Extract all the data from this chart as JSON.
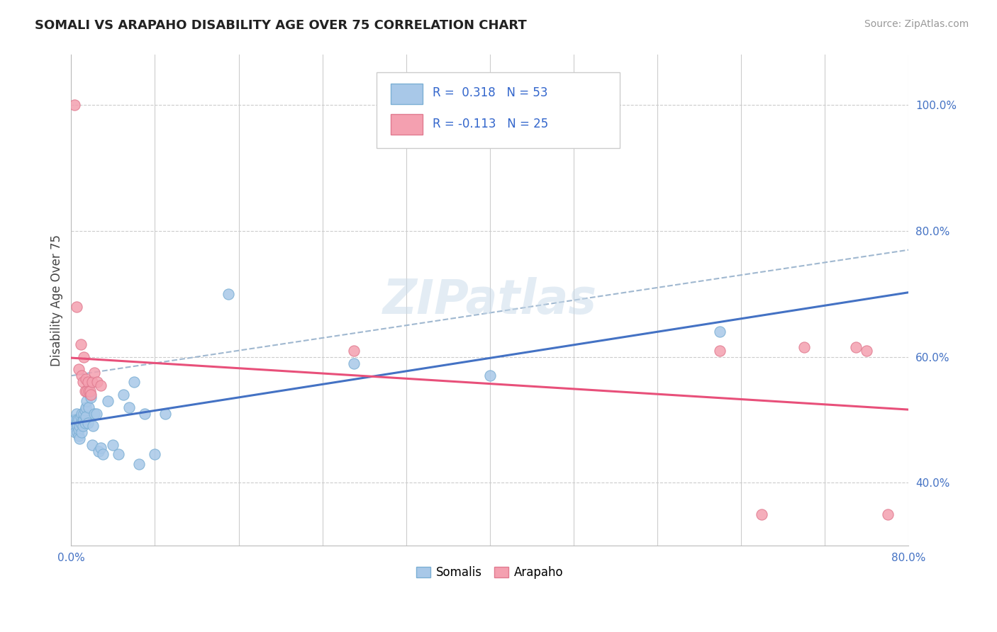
{
  "title": "SOMALI VS ARAPAHO DISABILITY AGE OVER 75 CORRELATION CHART",
  "source": "Source: ZipAtlas.com",
  "ylabel": "Disability Age Over 75",
  "xlim": [
    0.0,
    0.8
  ],
  "ylim": [
    0.3,
    1.08
  ],
  "x_ticks": [
    0.0,
    0.08,
    0.16,
    0.24,
    0.32,
    0.4,
    0.48,
    0.56,
    0.64,
    0.72,
    0.8
  ],
  "y_ticks": [
    0.4,
    0.6,
    0.8,
    1.0
  ],
  "somali_R": 0.318,
  "somali_N": 53,
  "arapaho_R": -0.113,
  "arapaho_N": 25,
  "somali_color": "#a8c8e8",
  "somali_edge": "#7bafd4",
  "arapaho_color": "#f4a0b0",
  "arapaho_edge": "#e07a8f",
  "trend_somali_color": "#4472c4",
  "trend_arapaho_color": "#e8507a",
  "diag_color": "#a0b8d0",
  "watermark": "ZIPatlas",
  "somali_x": [
    0.002,
    0.003,
    0.004,
    0.004,
    0.005,
    0.005,
    0.006,
    0.006,
    0.006,
    0.007,
    0.007,
    0.007,
    0.008,
    0.008,
    0.009,
    0.009,
    0.01,
    0.01,
    0.011,
    0.011,
    0.012,
    0.012,
    0.013,
    0.013,
    0.014,
    0.014,
    0.015,
    0.016,
    0.016,
    0.017,
    0.018,
    0.019,
    0.02,
    0.021,
    0.022,
    0.024,
    0.026,
    0.028,
    0.03,
    0.035,
    0.04,
    0.045,
    0.05,
    0.055,
    0.06,
    0.065,
    0.07,
    0.08,
    0.09,
    0.15,
    0.27,
    0.4,
    0.62
  ],
  "somali_y": [
    0.49,
    0.5,
    0.48,
    0.5,
    0.495,
    0.51,
    0.48,
    0.49,
    0.5,
    0.475,
    0.485,
    0.5,
    0.47,
    0.49,
    0.495,
    0.505,
    0.48,
    0.51,
    0.49,
    0.5,
    0.5,
    0.51,
    0.495,
    0.515,
    0.52,
    0.505,
    0.53,
    0.495,
    0.545,
    0.52,
    0.54,
    0.535,
    0.46,
    0.49,
    0.51,
    0.51,
    0.45,
    0.455,
    0.445,
    0.53,
    0.46,
    0.445,
    0.54,
    0.52,
    0.56,
    0.43,
    0.51,
    0.445,
    0.51,
    0.7,
    0.59,
    0.57,
    0.64
  ],
  "arapaho_x": [
    0.003,
    0.005,
    0.007,
    0.009,
    0.01,
    0.011,
    0.012,
    0.013,
    0.014,
    0.015,
    0.016,
    0.017,
    0.018,
    0.019,
    0.02,
    0.022,
    0.025,
    0.028,
    0.27,
    0.62,
    0.66,
    0.7,
    0.75,
    0.76,
    0.78
  ],
  "arapaho_y": [
    1.0,
    0.68,
    0.58,
    0.62,
    0.57,
    0.56,
    0.6,
    0.545,
    0.565,
    0.545,
    0.56,
    0.545,
    0.545,
    0.54,
    0.56,
    0.575,
    0.56,
    0.555,
    0.61,
    0.61,
    0.35,
    0.615,
    0.615,
    0.61,
    0.35
  ]
}
